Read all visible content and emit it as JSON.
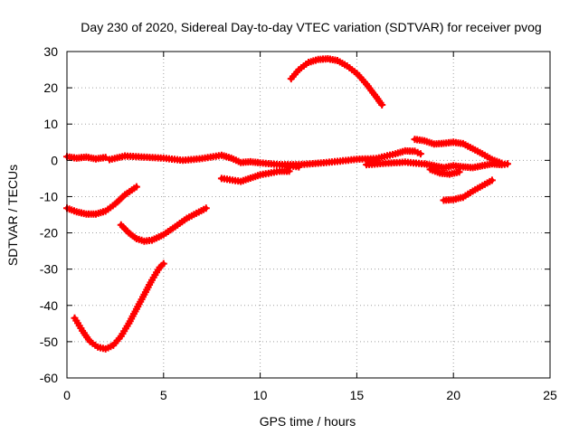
{
  "chart_data": {
    "type": "scatter",
    "title": "Day 230 of 2020, Sidereal Day-to-day VTEC variation (SDTVAR) for receiver pvog",
    "xlabel": "GPS time / hours",
    "ylabel": "SDTVAR / TECUs",
    "xlim": [
      0,
      25
    ],
    "ylim": [
      -60,
      30
    ],
    "xticks": [
      0,
      5,
      10,
      15,
      20,
      25
    ],
    "yticks": [
      -60,
      -50,
      -40,
      -30,
      -20,
      -10,
      0,
      10,
      20,
      30
    ],
    "grid": true,
    "marker": "plus",
    "color": "#ff0000",
    "series": [
      {
        "name": "s1",
        "x": [
          0.0,
          0.5,
          1.0,
          1.5,
          2.0,
          2.5,
          3.0,
          3.6
        ],
        "y": [
          -13.2,
          -14.2,
          -14.8,
          -14.8,
          -14.0,
          -12.0,
          -9.5,
          -7.3
        ]
      },
      {
        "name": "s2",
        "x": [
          2.8,
          3.2,
          3.6,
          4.0,
          4.4,
          5.0,
          5.6,
          6.2,
          7.2
        ],
        "y": [
          -17.8,
          -20.0,
          -21.6,
          -22.3,
          -22.0,
          -20.5,
          -18.3,
          -16.0,
          -13.2
        ]
      },
      {
        "name": "s3",
        "x": [
          0.4,
          0.8,
          1.2,
          1.6,
          2.0,
          2.4,
          2.8,
          3.2,
          3.6,
          4.0,
          4.4,
          4.8,
          5.0
        ],
        "y": [
          -43.5,
          -47.0,
          -50.0,
          -51.5,
          -52.0,
          -51.0,
          -48.5,
          -45.0,
          -41.0,
          -37.0,
          -33.0,
          -29.5,
          -28.5
        ]
      },
      {
        "name": "s4",
        "x": [
          0.0,
          0.5,
          1.0,
          1.5,
          2.0
        ],
        "y": [
          1.0,
          0.6,
          0.9,
          0.4,
          0.8
        ]
      },
      {
        "name": "s5",
        "x": [
          2.2,
          3.0,
          4.0,
          5.0,
          6.0,
          7.0,
          8.0,
          8.5,
          9.0,
          9.5,
          10.0,
          11.0,
          12.0
        ],
        "y": [
          0.2,
          1.2,
          0.9,
          0.6,
          0.0,
          0.5,
          1.4,
          0.6,
          -0.6,
          -0.4,
          -0.7,
          -1.2,
          -1.8
        ]
      },
      {
        "name": "s6",
        "x": [
          8.0,
          9.0,
          10.0,
          11.0,
          11.5
        ],
        "y": [
          -5.0,
          -5.8,
          -4.0,
          -3.0,
          -3.0
        ]
      },
      {
        "name": "s7",
        "x": [
          11.0,
          12.0,
          13.0,
          14.0,
          15.0,
          16.0,
          17.0,
          17.5,
          18.0,
          18.3
        ],
        "y": [
          -1.2,
          -1.2,
          -0.8,
          -0.3,
          0.3,
          0.5,
          1.8,
          2.6,
          2.5,
          1.8
        ]
      },
      {
        "name": "s8",
        "x": [
          15.5,
          16.5,
          17.5,
          18.5,
          19.0,
          19.5,
          20.0,
          20.5,
          21.0,
          21.5,
          22.0,
          22.5,
          22.8
        ],
        "y": [
          -1.2,
          -0.8,
          -0.5,
          -1.0,
          -1.5,
          -2.0,
          -1.5,
          -1.8,
          -2.0,
          -1.5,
          -1.0,
          -1.2,
          -1.0
        ]
      },
      {
        "name": "s9",
        "x": [
          18.0,
          18.5,
          19.0,
          19.5,
          20.0,
          20.5,
          21.0,
          21.5,
          22.0,
          22.5
        ],
        "y": [
          5.8,
          5.4,
          4.5,
          4.7,
          5.0,
          4.6,
          3.2,
          1.8,
          0.2,
          -0.8
        ]
      },
      {
        "name": "s10",
        "x": [
          18.8,
          19.3,
          19.8,
          20.3
        ],
        "y": [
          -2.5,
          -3.5,
          -3.8,
          -3.2
        ]
      },
      {
        "name": "s11",
        "x": [
          19.5,
          20.0,
          20.5,
          21.0,
          21.5,
          22.0
        ],
        "y": [
          -11.0,
          -10.8,
          -10.2,
          -8.5,
          -7.0,
          -5.5
        ]
      },
      {
        "name": "s12",
        "x": [
          11.6,
          12.0,
          12.5,
          13.0,
          13.5,
          14.0,
          14.5,
          15.0,
          15.5,
          16.0,
          16.3
        ],
        "y": [
          22.5,
          25.0,
          27.0,
          27.8,
          28.0,
          27.5,
          26.0,
          24.0,
          21.0,
          17.5,
          15.3
        ]
      }
    ]
  }
}
